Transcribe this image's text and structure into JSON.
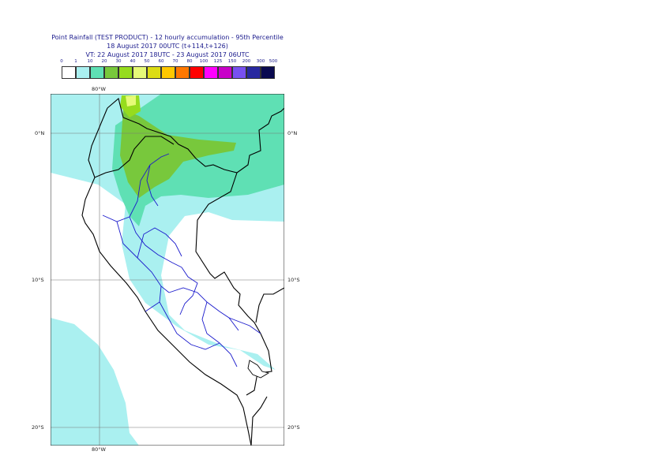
{
  "title": {
    "line1": "Point Rainfall (TEST PRODUCT) - 12 hourly accumulation - 95th Percentile",
    "line2": "18 August 2017 00UTC (t+114,t+126)",
    "line3": "VT: 22 August 2017 18UTC - 23 August 2017 06UTC"
  },
  "legend": {
    "thresholds": [
      "0",
      "1",
      "10",
      "20",
      "30",
      "40",
      "50",
      "60",
      "70",
      "80",
      "100",
      "125",
      "150",
      "200",
      "300",
      "500"
    ],
    "colors": [
      "#ffffff",
      "#aaf0f0",
      "#5fe0b4",
      "#78c83c",
      "#96dc1e",
      "#e6fa78",
      "#dcdc14",
      "#ffc800",
      "#ff7800",
      "#ff0000",
      "#ff00ff",
      "#c800c8",
      "#7850f0",
      "#2828a0",
      "#0a0a50"
    ]
  },
  "axes": {
    "lon_top": "80°W",
    "lon_bottom": "80°W",
    "lat_left": [
      "0°N",
      "10°S",
      "20°S"
    ],
    "lat_right": [
      "0°N",
      "10°S",
      "20°S"
    ]
  },
  "colors": {
    "border": "#000000",
    "regions": "#1a1acc",
    "grid": "#777777"
  }
}
